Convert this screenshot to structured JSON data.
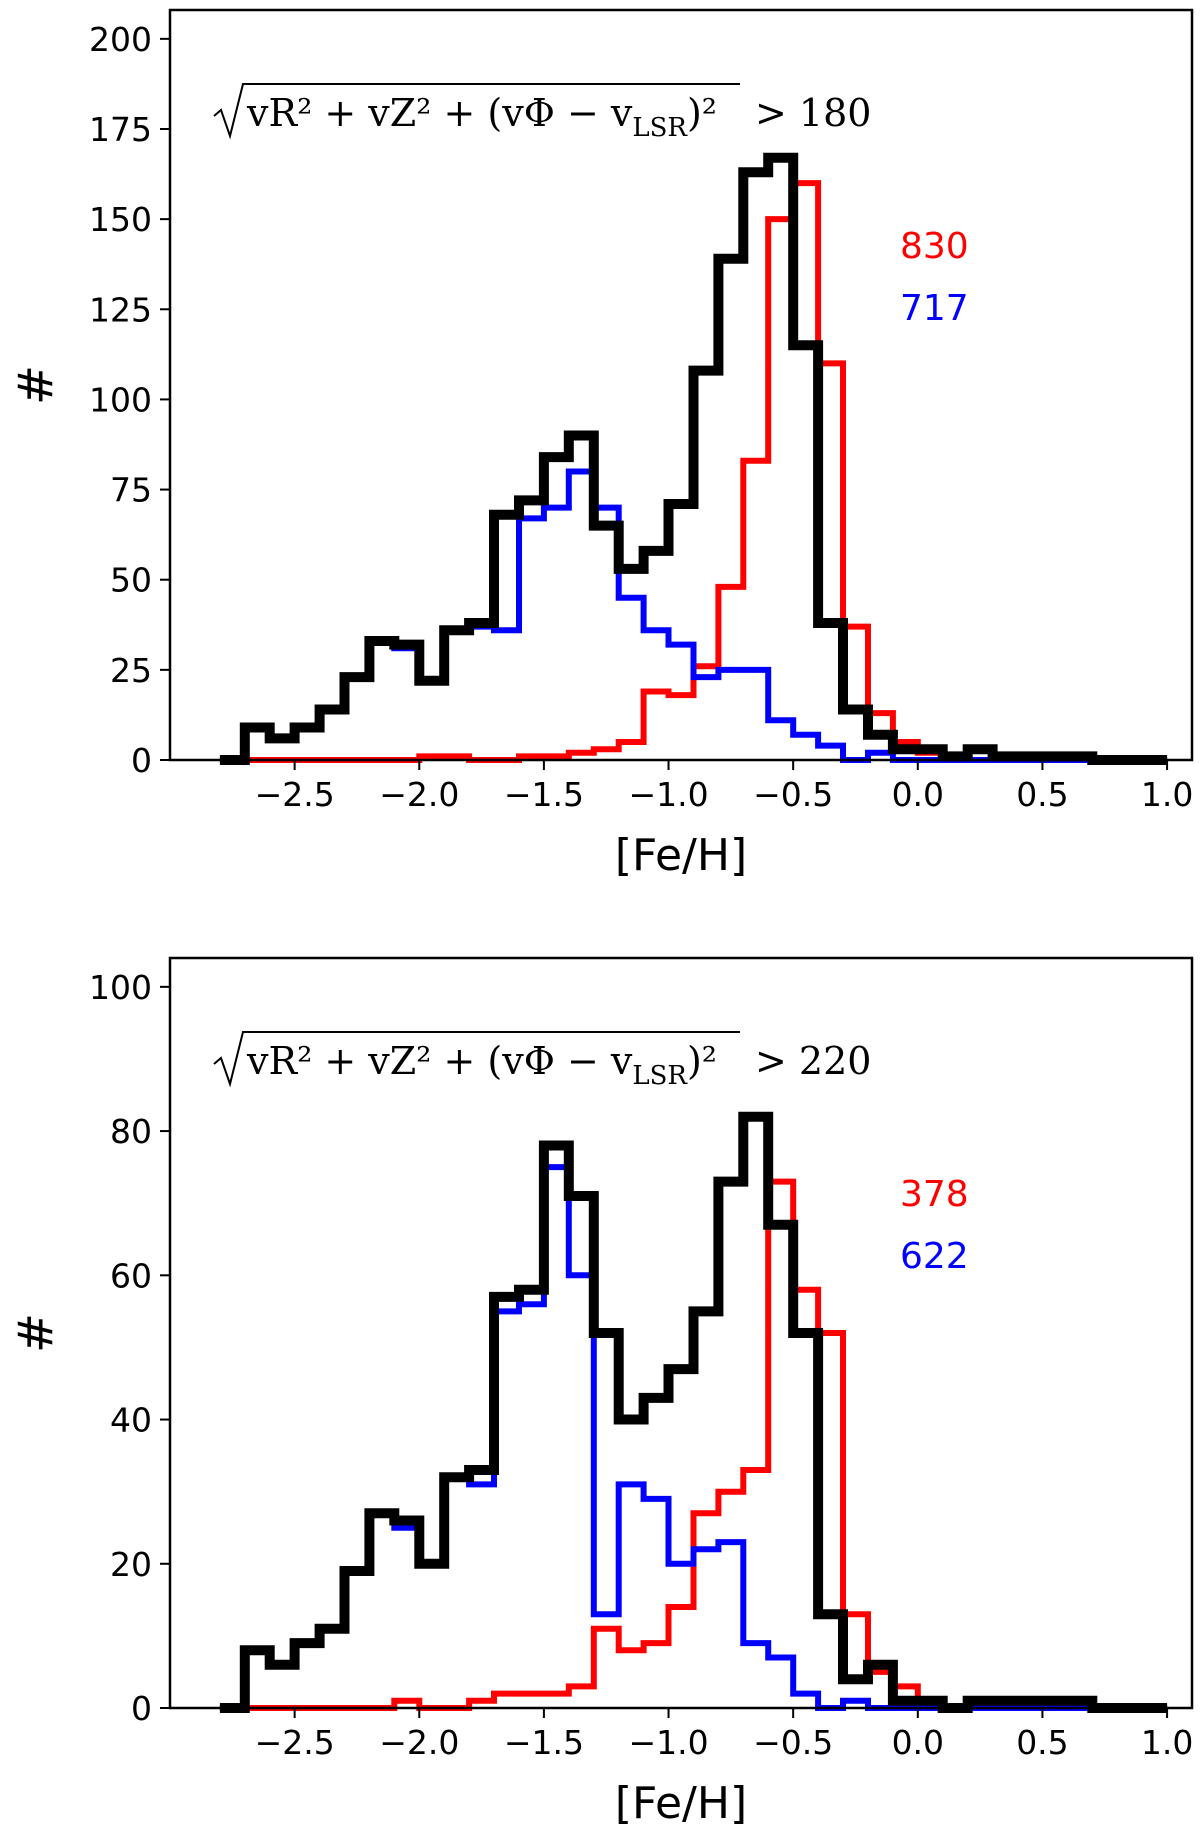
{
  "chart_data": [
    {
      "type": "histogram",
      "xlabel": "[Fe/H]",
      "ylabel": "#",
      "xlim": [
        -3.0,
        1.1
      ],
      "ylim": [
        0,
        208
      ],
      "xticks": [
        -2.5,
        -2.0,
        -1.5,
        -1.0,
        -0.5,
        0.0,
        0.5,
        1.0
      ],
      "xtick_labels": [
        "−2.5",
        "−2.0",
        "−1.5",
        "−1.0",
        "−0.5",
        "0.0",
        "0.5",
        "1.0"
      ],
      "yticks": [
        0,
        25,
        50,
        75,
        100,
        125,
        150,
        175,
        200
      ],
      "ytick_labels": [
        "0",
        "25",
        "50",
        "75",
        "100",
        "125",
        "150",
        "175",
        "200"
      ],
      "annotation": {
        "under_root": "vR² + vZ² + (vΦ − v",
        "subscript": "LSR",
        "close": ")²",
        "threshold": "> 180"
      },
      "counts": [
        {
          "text": "830",
          "color": "#ff0000"
        },
        {
          "text": "717",
          "color": "#0000ff"
        }
      ],
      "bin_edges": [
        -2.8,
        -2.7,
        -2.6,
        -2.5,
        -2.4,
        -2.3,
        -2.2,
        -2.1,
        -2.0,
        -1.9,
        -1.8,
        -1.7,
        -1.6,
        -1.5,
        -1.4,
        -1.3,
        -1.2,
        -1.1,
        -1.0,
        -0.9,
        -0.8,
        -0.7,
        -0.6,
        -0.5,
        -0.4,
        -0.3,
        -0.2,
        -0.1,
        0.0,
        0.1,
        0.2,
        0.3,
        0.4,
        0.5,
        0.6,
        0.7,
        0.8,
        0.9,
        1.0
      ],
      "series": [
        {
          "color": "#ff0000",
          "values": [
            0,
            0,
            0,
            0,
            0,
            0,
            0,
            0,
            1,
            1,
            0,
            0,
            1,
            1,
            2,
            3,
            5,
            19,
            18,
            26,
            48,
            83,
            150,
            160,
            110,
            37,
            13,
            5,
            2,
            1,
            0,
            1,
            1,
            0,
            0,
            0,
            0,
            0
          ]
        },
        {
          "color": "#0000ff",
          "values": [
            0,
            9,
            6,
            9,
            14,
            23,
            33,
            31,
            22,
            36,
            37,
            36,
            67,
            70,
            80,
            70,
            45,
            36,
            32,
            23,
            25,
            25,
            11,
            7,
            4,
            0,
            2,
            0,
            0,
            0,
            0,
            0,
            0,
            0,
            0,
            0,
            0,
            0
          ]
        },
        {
          "color": "#000000",
          "values": [
            0,
            9,
            6,
            9,
            14,
            23,
            33,
            32,
            22,
            36,
            38,
            68,
            72,
            84,
            90,
            65,
            53,
            58,
            71,
            108,
            139,
            163,
            167,
            115,
            38,
            14,
            7,
            3,
            3,
            1,
            3,
            1,
            1,
            1,
            1,
            0,
            0,
            0
          ]
        }
      ]
    },
    {
      "type": "histogram",
      "xlabel": "[Fe/H]",
      "ylabel": "#",
      "xlim": [
        -3.0,
        1.1
      ],
      "ylim": [
        0,
        104
      ],
      "xticks": [
        -2.5,
        -2.0,
        -1.5,
        -1.0,
        -0.5,
        0.0,
        0.5,
        1.0
      ],
      "xtick_labels": [
        "−2.5",
        "−2.0",
        "−1.5",
        "−1.0",
        "−0.5",
        "0.0",
        "0.5",
        "1.0"
      ],
      "yticks": [
        0,
        20,
        40,
        60,
        80,
        100
      ],
      "ytick_labels": [
        "0",
        "20",
        "40",
        "60",
        "80",
        "100"
      ],
      "annotation": {
        "under_root": "vR² + vZ² + (vΦ − v",
        "subscript": "LSR",
        "close": ")²",
        "threshold": "> 220"
      },
      "counts": [
        {
          "text": "378",
          "color": "#ff0000"
        },
        {
          "text": "622",
          "color": "#0000ff"
        }
      ],
      "bin_edges": [
        -2.8,
        -2.7,
        -2.6,
        -2.5,
        -2.4,
        -2.3,
        -2.2,
        -2.1,
        -2.0,
        -1.9,
        -1.8,
        -1.7,
        -1.6,
        -1.5,
        -1.4,
        -1.3,
        -1.2,
        -1.1,
        -1.0,
        -0.9,
        -0.8,
        -0.7,
        -0.6,
        -0.5,
        -0.4,
        -0.3,
        -0.2,
        -0.1,
        0.0,
        0.1,
        0.2,
        0.3,
        0.4,
        0.5,
        0.6,
        0.7,
        0.8,
        0.9,
        1.0
      ],
      "series": [
        {
          "color": "#ff0000",
          "values": [
            0,
            0,
            0,
            0,
            0,
            0,
            0,
            1,
            0,
            0,
            1,
            2,
            2,
            2,
            3,
            11,
            8,
            9,
            14,
            27,
            30,
            33,
            73,
            58,
            52,
            13,
            5,
            3,
            1,
            0,
            0,
            0,
            0,
            0,
            0,
            0,
            0,
            0
          ]
        },
        {
          "color": "#0000ff",
          "values": [
            0,
            8,
            6,
            9,
            11,
            19,
            27,
            25,
            20,
            32,
            31,
            55,
            56,
            75,
            60,
            13,
            31,
            29,
            20,
            22,
            23,
            9,
            7,
            2,
            0,
            1,
            0,
            0,
            0,
            0,
            0,
            0,
            0,
            0,
            0,
            0,
            0,
            0
          ]
        },
        {
          "color": "#000000",
          "values": [
            0,
            8,
            6,
            9,
            11,
            19,
            27,
            26,
            20,
            32,
            33,
            57,
            58,
            78,
            71,
            52,
            40,
            43,
            47,
            55,
            73,
            82,
            67,
            52,
            13,
            4,
            6,
            1,
            1,
            0,
            1,
            1,
            1,
            1,
            1,
            0,
            0,
            0
          ]
        }
      ]
    }
  ]
}
